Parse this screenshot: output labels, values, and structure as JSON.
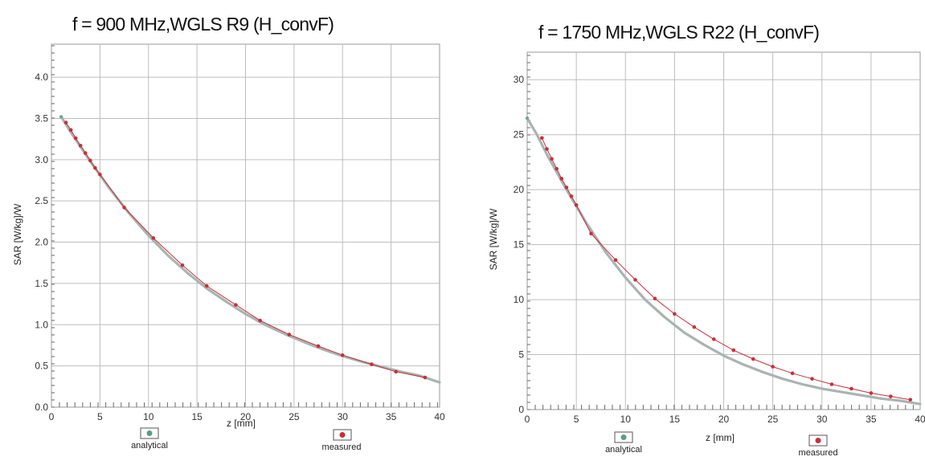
{
  "chart_data": [
    {
      "type": "line",
      "title": "f = 900 MHz,WGLS R9 (H_convF)",
      "xlabel": "z [mm]",
      "ylabel": "SAR [W/kg]/W",
      "xlim": [
        0,
        40
      ],
      "ylim": [
        0,
        4.4
      ],
      "xticks": [
        0,
        5,
        10,
        15,
        20,
        25,
        30,
        35,
        40
      ],
      "yticks": [
        "0.0",
        "0.5",
        "1.0",
        "1.5",
        "2.0",
        "2.5",
        "3.0",
        "3.5",
        "4.0"
      ],
      "grid": true,
      "legend_placement": "bottom",
      "series": [
        {
          "name": "analytical",
          "color": "#a9b4b2",
          "x": [
            1,
            2,
            4,
            6,
            8,
            10,
            12,
            14,
            16,
            18,
            20,
            22,
            24,
            26,
            28,
            30,
            32,
            34,
            36,
            38,
            40
          ],
          "y": [
            3.52,
            3.33,
            2.98,
            2.65,
            2.35,
            2.08,
            1.84,
            1.63,
            1.44,
            1.28,
            1.13,
            1.0,
            0.89,
            0.79,
            0.7,
            0.62,
            0.55,
            0.49,
            0.43,
            0.38,
            0.3
          ]
        },
        {
          "name": "measured",
          "color": "#c8303a",
          "x": [
            1.5,
            2.0,
            2.5,
            3.0,
            3.5,
            4.0,
            4.5,
            5.0,
            7.5,
            10.5,
            13.5,
            16.0,
            19.0,
            21.5,
            24.5,
            27.5,
            30.0,
            33.0,
            35.5,
            38.5
          ],
          "y": [
            3.45,
            3.36,
            3.26,
            3.17,
            3.08,
            2.99,
            2.9,
            2.82,
            2.42,
            2.05,
            1.72,
            1.47,
            1.24,
            1.05,
            0.88,
            0.74,
            0.63,
            0.52,
            0.43,
            0.36
          ]
        }
      ]
    },
    {
      "type": "line",
      "title": "f = 1750 MHz,WGLS R22 (H_convF)",
      "xlabel": "z [mm]",
      "ylabel": "SAR [W/kg]/W",
      "xlim": [
        0,
        40
      ],
      "ylim": [
        0,
        32.5
      ],
      "xticks": [
        0,
        5,
        10,
        15,
        20,
        25,
        30,
        35,
        40
      ],
      "yticks": [
        "0",
        "5",
        "10",
        "15",
        "20",
        "25",
        "30"
      ],
      "grid": true,
      "legend_placement": "bottom",
      "series": [
        {
          "name": "analytical",
          "color": "#a9b4b2",
          "x": [
            0,
            1,
            2,
            4,
            6,
            8,
            10,
            12,
            14,
            16,
            18,
            20,
            22,
            24,
            26,
            28,
            30,
            32,
            34,
            36,
            38,
            40
          ],
          "y": [
            26.5,
            25.0,
            23.2,
            20.0,
            17.0,
            14.3,
            12.0,
            10.0,
            8.4,
            7.0,
            5.9,
            4.9,
            4.1,
            3.4,
            2.8,
            2.3,
            1.9,
            1.6,
            1.3,
            1.0,
            0.8,
            0.5
          ]
        },
        {
          "name": "measured",
          "color": "#c8303a",
          "x": [
            1.5,
            2.0,
            2.5,
            3.0,
            3.5,
            4.0,
            4.5,
            5.0,
            6.5,
            9.0,
            11.0,
            13.0,
            15.0,
            17.0,
            19.0,
            21.0,
            23.0,
            25.0,
            27.0,
            29.0,
            31.0,
            33.0,
            35.0,
            37.0,
            39.0
          ],
          "y": [
            24.7,
            23.7,
            22.8,
            21.9,
            21.0,
            20.2,
            19.4,
            18.6,
            16.0,
            13.6,
            11.8,
            10.1,
            8.7,
            7.5,
            6.4,
            5.4,
            4.6,
            3.9,
            3.3,
            2.8,
            2.3,
            1.9,
            1.5,
            1.2,
            0.9
          ]
        }
      ]
    }
  ]
}
